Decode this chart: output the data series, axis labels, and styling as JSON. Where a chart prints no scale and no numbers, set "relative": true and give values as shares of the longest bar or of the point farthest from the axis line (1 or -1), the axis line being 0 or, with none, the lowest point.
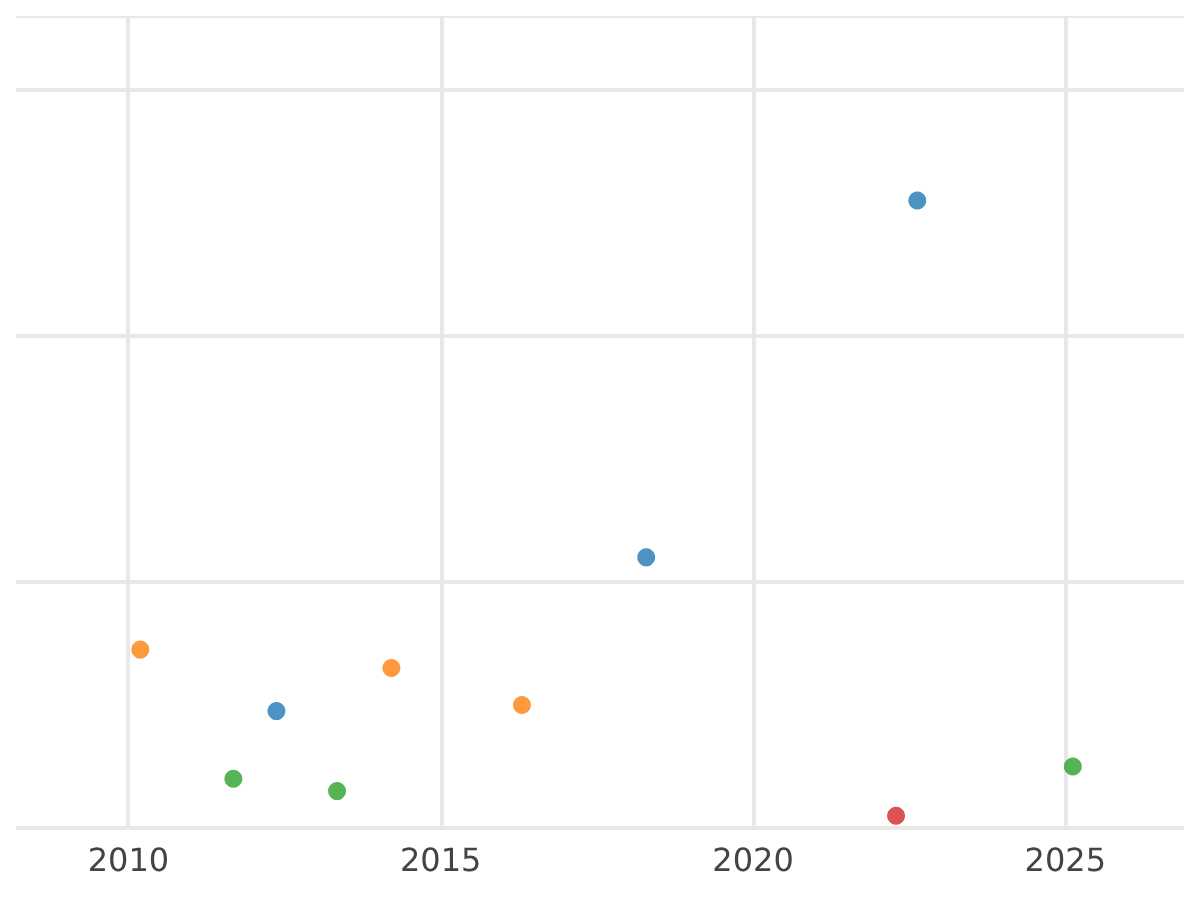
{
  "chart_data": {
    "type": "scatter",
    "relative": true,
    "xlim": [
      2008.2,
      2026.9
    ],
    "xticks": [
      2010,
      2015,
      2020,
      2025
    ],
    "grid": true,
    "marker": "circle",
    "tick_labels": "x",
    "series": [
      {
        "color": "#1f77b4",
        "x": [
          2012.37,
          2018.29,
          2022.63
        ],
        "values": [
          0.17,
          0.42,
          1.0
        ]
      },
      {
        "color": "#ff7f0e",
        "x": [
          2010.19,
          2014.21,
          2016.3
        ],
        "values": [
          0.27,
          0.24,
          0.18
        ]
      },
      {
        "color": "#2ca02c",
        "x": [
          2011.68,
          2013.34,
          2025.12
        ],
        "values": [
          0.06,
          0.04,
          0.08
        ]
      },
      {
        "color": "#d62728",
        "x": [
          2022.29
        ],
        "values": [
          0
        ]
      }
    ]
  }
}
